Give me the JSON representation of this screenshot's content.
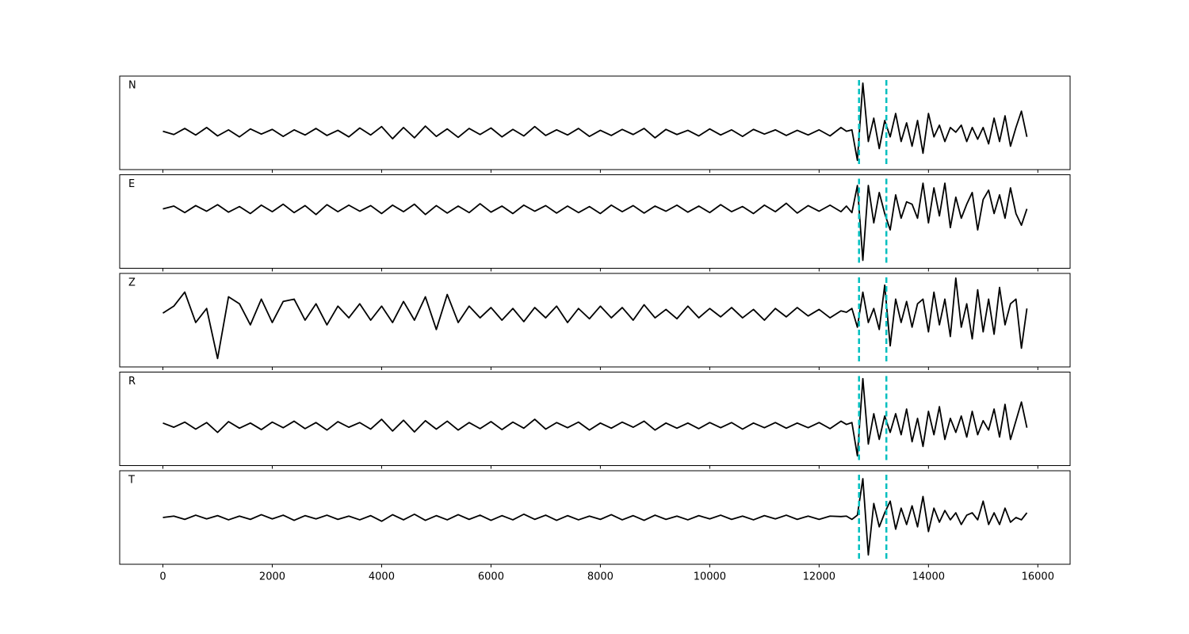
{
  "chart_data": {
    "type": "line",
    "x": [
      0,
      200,
      400,
      600,
      800,
      1000,
      1200,
      1400,
      1600,
      1800,
      2000,
      2200,
      2400,
      2600,
      2800,
      3000,
      3200,
      3400,
      3600,
      3800,
      4000,
      4200,
      4400,
      4600,
      4800,
      5000,
      5200,
      5400,
      5600,
      5800,
      6000,
      6200,
      6400,
      6600,
      6800,
      7000,
      7200,
      7400,
      7600,
      7800,
      8000,
      8200,
      8400,
      8600,
      8800,
      9000,
      9200,
      9400,
      9600,
      9800,
      10000,
      10200,
      10400,
      10600,
      10800,
      11000,
      11200,
      11400,
      11600,
      11800,
      12000,
      12200,
      12400,
      12500,
      12600,
      12700,
      12800,
      12900,
      13000,
      13100,
      13200,
      13300,
      13400,
      13500,
      13600,
      13700,
      13800,
      13900,
      14000,
      14100,
      14200,
      14300,
      14400,
      14500,
      14600,
      14700,
      14800,
      14900,
      15000,
      15100,
      15200,
      15300,
      15400,
      15500,
      15600,
      15700,
      15800
    ],
    "xlim": [
      -790,
      16590
    ],
    "xticks": [
      0,
      2000,
      4000,
      6000,
      8000,
      10000,
      12000,
      14000,
      16000
    ],
    "vlines": {
      "color": "#00bfbf",
      "values": [
        12730,
        13230
      ]
    },
    "series": [
      {
        "name": "N",
        "color": "#000000",
        "ylim": [
          -0.8,
          1.2
        ],
        "values": [
          0.02,
          -0.05,
          0.08,
          -0.06,
          0.1,
          -0.08,
          0.05,
          -0.1,
          0.07,
          -0.04,
          0.06,
          -0.09,
          0.05,
          -0.06,
          0.08,
          -0.07,
          0.04,
          -0.1,
          0.09,
          -0.06,
          0.12,
          -0.14,
          0.1,
          -0.12,
          0.13,
          -0.09,
          0.07,
          -0.11,
          0.08,
          -0.05,
          0.09,
          -0.1,
          0.06,
          -0.08,
          0.12,
          -0.07,
          0.05,
          -0.06,
          0.08,
          -0.09,
          0.04,
          -0.07,
          0.06,
          -0.05,
          0.08,
          -0.12,
          0.06,
          -0.05,
          0.04,
          -0.08,
          0.07,
          -0.06,
          0.05,
          -0.09,
          0.06,
          -0.04,
          0.05,
          -0.07,
          0.04,
          -0.06,
          0.05,
          -0.08,
          0.1,
          0.02,
          0.05,
          -0.6,
          1.05,
          -0.2,
          0.3,
          -0.35,
          0.25,
          -0.1,
          0.4,
          -0.2,
          0.2,
          -0.3,
          0.25,
          -0.45,
          0.4,
          -0.1,
          0.15,
          -0.2,
          0.1,
          0.0,
          0.15,
          -0.2,
          0.1,
          -0.15,
          0.1,
          -0.25,
          0.3,
          -0.2,
          0.35,
          -0.3,
          0.1,
          0.45,
          -0.1
        ]
      },
      {
        "name": "E",
        "color": "#000000",
        "ylim": [
          -1.27,
          0.73
        ],
        "values": [
          0.0,
          0.06,
          -0.08,
          0.07,
          -0.05,
          0.09,
          -0.07,
          0.05,
          -0.1,
          0.08,
          -0.06,
          0.1,
          -0.08,
          0.07,
          -0.12,
          0.09,
          -0.06,
          0.08,
          -0.05,
          0.07,
          -0.1,
          0.08,
          -0.06,
          0.1,
          -0.12,
          0.07,
          -0.09,
          0.06,
          -0.08,
          0.11,
          -0.07,
          0.06,
          -0.1,
          0.08,
          -0.05,
          0.07,
          -0.09,
          0.06,
          -0.08,
          0.05,
          -0.1,
          0.08,
          -0.06,
          0.07,
          -0.09,
          0.06,
          -0.05,
          0.08,
          -0.07,
          0.06,
          -0.08,
          0.09,
          -0.06,
          0.05,
          -0.1,
          0.08,
          -0.06,
          0.12,
          -0.09,
          0.07,
          -0.05,
          0.08,
          -0.06,
          0.06,
          -0.08,
          0.5,
          -1.1,
          0.5,
          -0.3,
          0.35,
          -0.1,
          -0.45,
          0.3,
          -0.2,
          0.15,
          0.1,
          -0.2,
          0.55,
          -0.3,
          0.45,
          -0.15,
          0.55,
          -0.4,
          0.25,
          -0.2,
          0.1,
          0.35,
          -0.45,
          0.2,
          0.4,
          -0.1,
          0.3,
          -0.2,
          0.45,
          -0.1,
          -0.35,
          0.0
        ]
      },
      {
        "name": "Z",
        "color": "#000000",
        "ylim": [
          -1.15,
          0.85
        ],
        "values": [
          0.0,
          0.15,
          0.45,
          -0.2,
          0.1,
          -0.97,
          0.35,
          0.2,
          -0.25,
          0.3,
          -0.2,
          0.25,
          0.3,
          -0.15,
          0.2,
          -0.25,
          0.15,
          -0.1,
          0.2,
          -0.15,
          0.15,
          -0.2,
          0.25,
          -0.15,
          0.35,
          -0.35,
          0.4,
          -0.2,
          0.15,
          -0.1,
          0.12,
          -0.15,
          0.1,
          -0.18,
          0.12,
          -0.1,
          0.15,
          -0.2,
          0.1,
          -0.12,
          0.15,
          -0.1,
          0.12,
          -0.15,
          0.18,
          -0.1,
          0.08,
          -0.12,
          0.15,
          -0.1,
          0.1,
          -0.08,
          0.12,
          -0.1,
          0.08,
          -0.15,
          0.1,
          -0.08,
          0.12,
          -0.06,
          0.08,
          -0.1,
          0.05,
          0.02,
          0.1,
          -0.3,
          0.45,
          -0.2,
          0.1,
          -0.35,
          0.6,
          -0.7,
          0.3,
          -0.2,
          0.25,
          -0.3,
          0.2,
          0.3,
          -0.4,
          0.45,
          -0.25,
          0.3,
          -0.5,
          0.75,
          -0.3,
          0.2,
          -0.55,
          0.5,
          -0.4,
          0.3,
          -0.45,
          0.55,
          -0.25,
          0.2,
          0.3,
          -0.75,
          0.1
        ]
      },
      {
        "name": "R",
        "color": "#000000",
        "ylim": [
          -0.86,
          1.14
        ],
        "values": [
          0.05,
          -0.04,
          0.07,
          -0.08,
          0.06,
          -0.15,
          0.08,
          -0.06,
          0.05,
          -0.09,
          0.07,
          -0.05,
          0.09,
          -0.07,
          0.06,
          -0.1,
          0.08,
          -0.04,
          0.06,
          -0.08,
          0.13,
          -0.12,
          0.11,
          -0.14,
          0.1,
          -0.08,
          0.09,
          -0.1,
          0.06,
          -0.07,
          0.08,
          -0.09,
          0.07,
          -0.06,
          0.13,
          -0.08,
          0.06,
          -0.05,
          0.07,
          -0.1,
          0.05,
          -0.06,
          0.07,
          -0.04,
          0.09,
          -0.1,
          0.05,
          -0.06,
          0.05,
          -0.07,
          0.06,
          -0.05,
          0.06,
          -0.08,
          0.05,
          -0.05,
          0.06,
          -0.06,
          0.05,
          -0.05,
          0.06,
          -0.07,
          0.09,
          0.02,
          0.06,
          -0.65,
          1.0,
          -0.4,
          0.25,
          -0.3,
          0.2,
          -0.15,
          0.25,
          -0.2,
          0.35,
          -0.35,
          0.15,
          -0.45,
          0.3,
          -0.2,
          0.4,
          -0.3,
          0.15,
          -0.15,
          0.2,
          -0.25,
          0.3,
          -0.2,
          0.1,
          -0.1,
          0.35,
          -0.25,
          0.45,
          -0.3,
          0.1,
          0.5,
          -0.05
        ]
      },
      {
        "name": "T",
        "color": "#000000",
        "ylim": [
          -1.0,
          1.0
        ],
        "values": [
          0.0,
          0.03,
          -0.04,
          0.05,
          -0.03,
          0.04,
          -0.05,
          0.03,
          -0.04,
          0.06,
          -0.03,
          0.05,
          -0.06,
          0.04,
          -0.03,
          0.05,
          -0.04,
          0.03,
          -0.05,
          0.04,
          -0.08,
          0.06,
          -0.05,
          0.07,
          -0.06,
          0.04,
          -0.05,
          0.06,
          -0.04,
          0.05,
          -0.06,
          0.04,
          -0.05,
          0.07,
          -0.04,
          0.05,
          -0.06,
          0.04,
          -0.05,
          0.03,
          -0.04,
          0.06,
          -0.05,
          0.04,
          -0.06,
          0.05,
          -0.04,
          0.03,
          -0.05,
          0.04,
          -0.03,
          0.05,
          -0.04,
          0.03,
          -0.05,
          0.04,
          -0.03,
          0.05,
          -0.04,
          0.03,
          -0.04,
          0.03,
          0.02,
          0.03,
          -0.04,
          0.05,
          0.83,
          -0.8,
          0.3,
          -0.2,
          0.1,
          0.35,
          -0.25,
          0.2,
          -0.15,
          0.25,
          -0.2,
          0.45,
          -0.3,
          0.2,
          -0.1,
          0.15,
          -0.05,
          0.1,
          -0.15,
          0.05,
          0.1,
          -0.05,
          0.35,
          -0.15,
          0.1,
          -0.15,
          0.2,
          -0.1,
          0.0,
          -0.05,
          0.1
        ]
      }
    ]
  }
}
